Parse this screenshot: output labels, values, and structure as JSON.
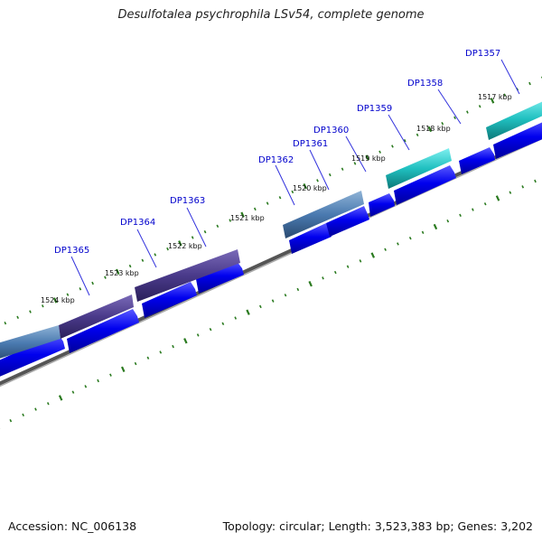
{
  "title": "Desulfotalea psychrophila LSv54, complete genome",
  "footer": {
    "accession": "Accession: NC_006138",
    "summary": "Topology: circular; Length: 3,523,383 bp; Genes: 3,202"
  },
  "colors": {
    "gene_label": "#0000cc",
    "cds_blue": "#0000ee",
    "tick_green": "#2a7a1f",
    "backbone_gray": "#777777",
    "leader_line": "#3333dd"
  },
  "kbp_labels": [
    "1517 kbp",
    "1518 kbp",
    "1519 kbp",
    "1520 kbp",
    "1521 kbp",
    "1522 kbp",
    "1523 kbp",
    "1524 kbp"
  ],
  "genes": [
    {
      "name": "DP1357",
      "color": "#20c0c0"
    },
    {
      "name": "DP1358",
      "color": "#20c0c0"
    },
    {
      "name": "DP1359",
      "color": "#20c0c0"
    },
    {
      "name": "DP1360",
      "color": "#1a2ad8"
    },
    {
      "name": "DP1361",
      "color": "#4a7ab0"
    },
    {
      "name": "DP1362",
      "color": "#4a7ab0"
    },
    {
      "name": "DP1363",
      "color": "#4a3a8a"
    },
    {
      "name": "DP1364",
      "color": "#4a3a8a"
    },
    {
      "name": "DP1365",
      "color": "#4a7ab0"
    }
  ]
}
